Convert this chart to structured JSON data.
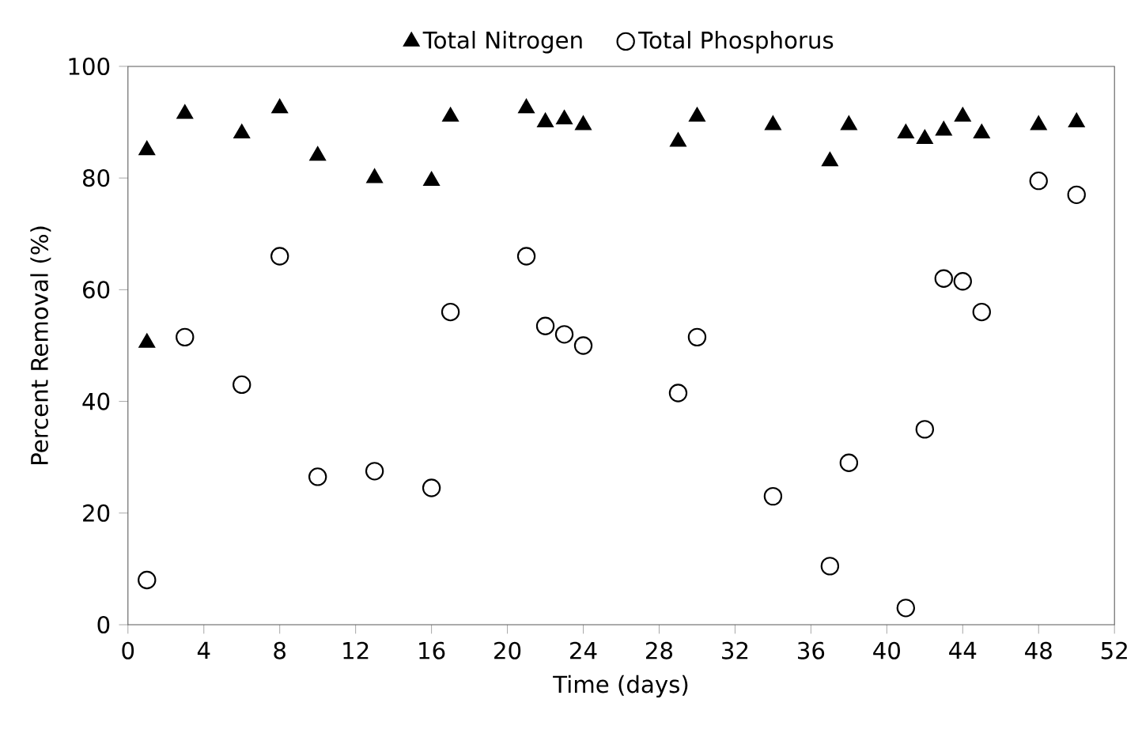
{
  "chart_data": {
    "type": "scatter",
    "xlabel": "Time (days)",
    "ylabel": "Percent Removal (%)",
    "xlim": [
      0,
      52
    ],
    "ylim": [
      0,
      100
    ],
    "xticks": [
      0,
      4,
      8,
      12,
      16,
      20,
      24,
      28,
      32,
      36,
      40,
      44,
      48,
      52
    ],
    "yticks": [
      0,
      20,
      40,
      60,
      80,
      100
    ],
    "legend": "top",
    "grid": false,
    "series": [
      {
        "name": "Total Nitrogen",
        "color": "#000000",
        "marker": "triangle",
        "x": [
          1,
          1,
          3,
          6,
          8,
          10,
          13,
          16,
          17,
          21,
          22,
          23,
          24,
          29,
          30,
          34,
          37,
          38,
          41,
          42,
          43,
          44,
          45,
          48,
          50
        ],
        "values": [
          85,
          50.5,
          91.5,
          88,
          92.5,
          84,
          80,
          79.5,
          91,
          92.5,
          90,
          90.5,
          89.5,
          86.5,
          91,
          89.5,
          83,
          89.5,
          88,
          87,
          88.5,
          91,
          88,
          89.5,
          90
        ]
      },
      {
        "name": "Total Phosphorus",
        "color": "#000000",
        "marker": "circle",
        "x": [
          1,
          3,
          6,
          8,
          10,
          13,
          16,
          17,
          21,
          22,
          23,
          24,
          29,
          30,
          34,
          37,
          38,
          41,
          42,
          43,
          44,
          45,
          48,
          50
        ],
        "values": [
          8,
          51.5,
          43,
          66,
          26.5,
          27.5,
          24.5,
          56,
          66,
          53.5,
          52,
          50,
          41.5,
          51.5,
          23,
          10.5,
          29,
          3,
          35,
          62,
          61.5,
          56,
          79.5,
          77
        ]
      }
    ]
  }
}
